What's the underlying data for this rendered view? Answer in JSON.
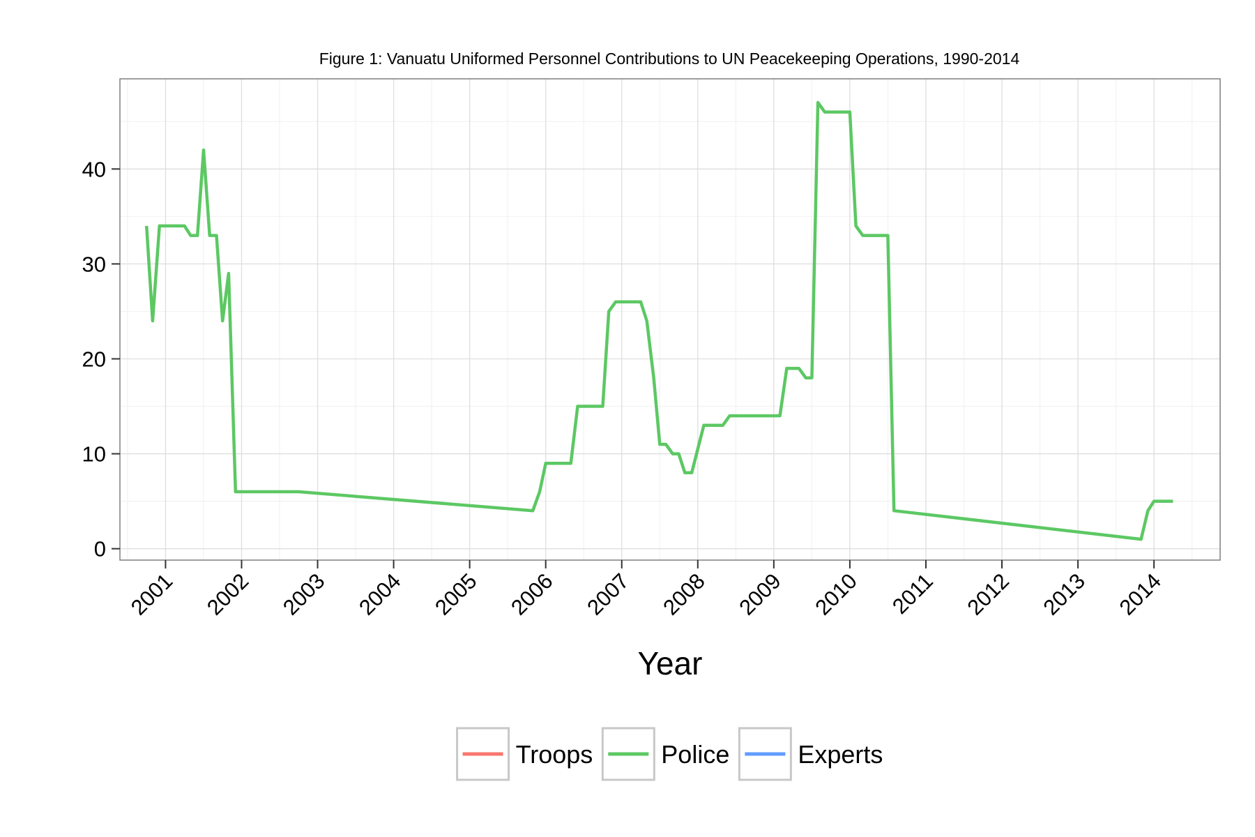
{
  "chart_data": {
    "type": "line",
    "title": "Figure 1: Vanuatu Uniformed Personnel Contributions to UN Peacekeeping Operations, 1990-2014",
    "xlabel": "Year",
    "ylabel": "",
    "xlim": [
      2000.4,
      2014.87
    ],
    "ylim": [
      -1.2,
      49.5
    ],
    "x_ticks": [
      2001,
      2002,
      2003,
      2004,
      2005,
      2006,
      2007,
      2008,
      2009,
      2010,
      2011,
      2012,
      2013,
      2014
    ],
    "y_ticks": [
      0,
      10,
      20,
      30,
      40
    ],
    "grid": true,
    "legend_position": "bottom",
    "series": [
      {
        "name": "Troops",
        "color": "#F8766D",
        "points": []
      },
      {
        "name": "Police",
        "color": "#5CC863",
        "points": [
          [
            2000.75,
            34
          ],
          [
            2000.83,
            24
          ],
          [
            2000.92,
            34
          ],
          [
            2001.25,
            34
          ],
          [
            2001.33,
            33
          ],
          [
            2001.42,
            33
          ],
          [
            2001.5,
            42
          ],
          [
            2001.58,
            33
          ],
          [
            2001.67,
            33
          ],
          [
            2001.75,
            24
          ],
          [
            2001.83,
            29
          ],
          [
            2001.92,
            6
          ],
          [
            2002.75,
            6
          ],
          [
            2005.83,
            4
          ],
          [
            2005.92,
            6
          ],
          [
            2006.0,
            9
          ],
          [
            2006.33,
            9
          ],
          [
            2006.42,
            15
          ],
          [
            2006.75,
            15
          ],
          [
            2006.83,
            25
          ],
          [
            2006.92,
            26
          ],
          [
            2007.25,
            26
          ],
          [
            2007.33,
            24
          ],
          [
            2007.42,
            18
          ],
          [
            2007.5,
            11
          ],
          [
            2007.58,
            11
          ],
          [
            2007.67,
            10
          ],
          [
            2007.75,
            10
          ],
          [
            2007.83,
            8
          ],
          [
            2007.92,
            8
          ],
          [
            2008.08,
            13
          ],
          [
            2008.33,
            13
          ],
          [
            2008.42,
            14
          ],
          [
            2009.08,
            14
          ],
          [
            2009.17,
            19
          ],
          [
            2009.33,
            19
          ],
          [
            2009.42,
            18
          ],
          [
            2009.5,
            18
          ],
          [
            2009.58,
            47
          ],
          [
            2009.67,
            46
          ],
          [
            2010.0,
            46
          ],
          [
            2010.08,
            34
          ],
          [
            2010.17,
            33
          ],
          [
            2010.5,
            33
          ],
          [
            2010.58,
            4
          ],
          [
            2013.83,
            1
          ],
          [
            2013.92,
            4
          ],
          [
            2014.0,
            5
          ],
          [
            2014.25,
            5
          ]
        ]
      },
      {
        "name": "Experts",
        "color": "#619CFF",
        "points": []
      }
    ]
  }
}
